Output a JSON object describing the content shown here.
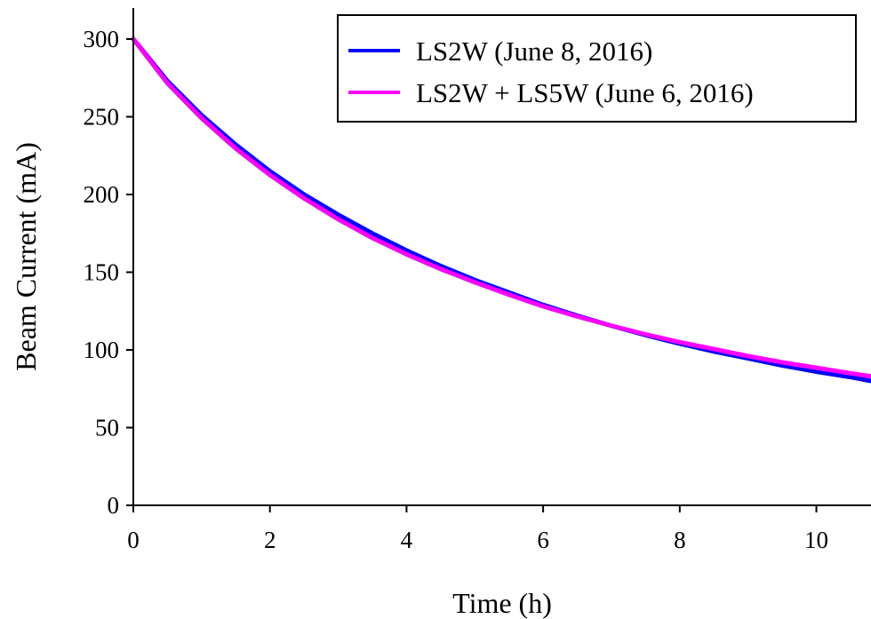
{
  "chart_data": {
    "type": "line",
    "title": "",
    "xlabel": "Time (h)",
    "ylabel": "Beam Current (mA)",
    "xlim": [
      0,
      10.8
    ],
    "ylim": [
      0,
      300
    ],
    "xticks": [
      0,
      2,
      4,
      6,
      8,
      10
    ],
    "yticks": [
      0,
      50,
      100,
      150,
      200,
      250,
      300
    ],
    "xtick_labels": [
      "0",
      "2",
      "4",
      "6",
      "8",
      "10"
    ],
    "ytick_labels": [
      "0",
      "50",
      "100",
      "150",
      "200",
      "250",
      "300"
    ],
    "grid": false,
    "legend_position": "top-right",
    "x": [
      0,
      0.5,
      1,
      1.5,
      2,
      2.5,
      3,
      3.5,
      4,
      4.5,
      5,
      5.5,
      6,
      6.5,
      7,
      7.5,
      8,
      8.5,
      9,
      9.5,
      10,
      10.5,
      10.8
    ],
    "series": [
      {
        "name": "LS2W (June 8, 2016)",
        "color": "#0000ff",
        "values": [
          300,
          273,
          251,
          232,
          215,
          200,
          187,
          175,
          164,
          154,
          145,
          137,
          129,
          122,
          115.5,
          109.5,
          104,
          99,
          94.5,
          90,
          86,
          82.5,
          80
        ]
      },
      {
        "name": "LS2W + LS5W (June 6, 2016)",
        "color": "#ff00ff",
        "values": [
          300,
          271.5,
          249,
          229.5,
          212.5,
          197.5,
          184,
          172,
          161.5,
          152,
          143.5,
          135.5,
          128,
          121.5,
          115.5,
          110,
          105,
          100.5,
          96,
          92,
          88.5,
          85,
          83
        ]
      }
    ]
  }
}
